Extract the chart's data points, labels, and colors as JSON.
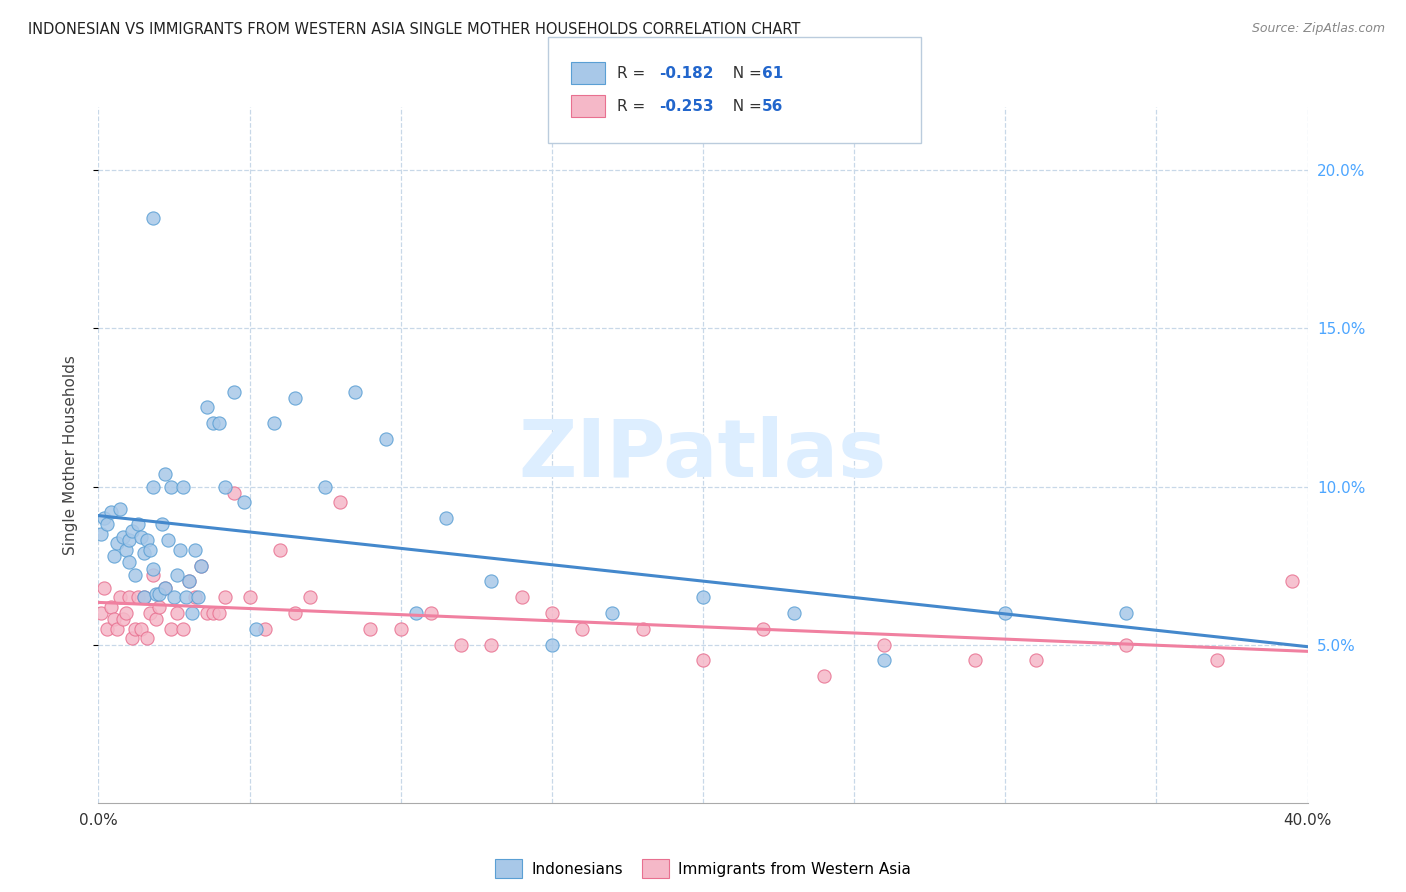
{
  "title": "INDONESIAN VS IMMIGRANTS FROM WESTERN ASIA SINGLE MOTHER HOUSEHOLDS CORRELATION CHART",
  "source": "Source: ZipAtlas.com",
  "ylabel": "Single Mother Households",
  "legend_label1": "Indonesians",
  "legend_label2": "Immigrants from Western Asia",
  "legend_R1_val": "-0.182",
  "legend_N1_val": "61",
  "legend_R2_val": "-0.253",
  "legend_N2_val": "56",
  "color_blue": "#a8c8e8",
  "color_pink": "#f5b8c8",
  "color_blue_edge": "#5a9fd4",
  "color_pink_edge": "#e87090",
  "color_line_blue": "#4488cc",
  "color_line_pink": "#f080a0",
  "watermark_color": "#ddeeff",
  "xlim": [
    0.0,
    0.4
  ],
  "ylim": [
    0.0,
    0.22
  ],
  "yticks": [
    0.05,
    0.1,
    0.15,
    0.2
  ],
  "ytick_labels": [
    "5.0%",
    "10.0%",
    "15.0%",
    "20.0%"
  ],
  "blue_x": [
    0.001,
    0.002,
    0.003,
    0.004,
    0.005,
    0.006,
    0.007,
    0.008,
    0.009,
    0.01,
    0.01,
    0.011,
    0.012,
    0.013,
    0.014,
    0.015,
    0.015,
    0.016,
    0.017,
    0.018,
    0.018,
    0.019,
    0.02,
    0.021,
    0.022,
    0.022,
    0.023,
    0.024,
    0.025,
    0.026,
    0.027,
    0.028,
    0.029,
    0.03,
    0.031,
    0.032,
    0.033,
    0.034,
    0.036,
    0.038,
    0.04,
    0.042,
    0.045,
    0.048,
    0.052,
    0.058,
    0.065,
    0.075,
    0.085,
    0.095,
    0.105,
    0.115,
    0.13,
    0.15,
    0.17,
    0.2,
    0.23,
    0.26,
    0.3,
    0.34,
    0.018
  ],
  "blue_y": [
    0.085,
    0.09,
    0.088,
    0.092,
    0.078,
    0.082,
    0.093,
    0.084,
    0.08,
    0.083,
    0.076,
    0.086,
    0.072,
    0.088,
    0.084,
    0.079,
    0.065,
    0.083,
    0.08,
    0.1,
    0.074,
    0.066,
    0.066,
    0.088,
    0.104,
    0.068,
    0.083,
    0.1,
    0.065,
    0.072,
    0.08,
    0.1,
    0.065,
    0.07,
    0.06,
    0.08,
    0.065,
    0.075,
    0.125,
    0.12,
    0.12,
    0.1,
    0.13,
    0.095,
    0.055,
    0.12,
    0.128,
    0.1,
    0.13,
    0.115,
    0.06,
    0.09,
    0.07,
    0.05,
    0.06,
    0.065,
    0.06,
    0.045,
    0.06,
    0.06,
    0.185
  ],
  "pink_x": [
    0.001,
    0.002,
    0.003,
    0.004,
    0.005,
    0.006,
    0.007,
    0.008,
    0.009,
    0.01,
    0.011,
    0.012,
    0.013,
    0.014,
    0.015,
    0.016,
    0.017,
    0.018,
    0.019,
    0.02,
    0.022,
    0.024,
    0.026,
    0.028,
    0.03,
    0.032,
    0.034,
    0.036,
    0.038,
    0.04,
    0.042,
    0.045,
    0.05,
    0.055,
    0.06,
    0.065,
    0.07,
    0.08,
    0.09,
    0.1,
    0.11,
    0.12,
    0.13,
    0.14,
    0.15,
    0.16,
    0.18,
    0.2,
    0.22,
    0.24,
    0.26,
    0.29,
    0.31,
    0.34,
    0.37,
    0.395
  ],
  "pink_y": [
    0.06,
    0.068,
    0.055,
    0.062,
    0.058,
    0.055,
    0.065,
    0.058,
    0.06,
    0.065,
    0.052,
    0.055,
    0.065,
    0.055,
    0.065,
    0.052,
    0.06,
    0.072,
    0.058,
    0.062,
    0.068,
    0.055,
    0.06,
    0.055,
    0.07,
    0.065,
    0.075,
    0.06,
    0.06,
    0.06,
    0.065,
    0.098,
    0.065,
    0.055,
    0.08,
    0.06,
    0.065,
    0.095,
    0.055,
    0.055,
    0.06,
    0.05,
    0.05,
    0.065,
    0.06,
    0.055,
    0.055,
    0.045,
    0.055,
    0.04,
    0.05,
    0.045,
    0.045,
    0.05,
    0.045,
    0.07
  ]
}
